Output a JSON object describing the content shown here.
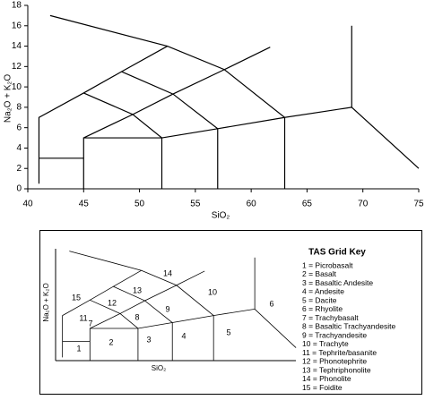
{
  "chart_data": {
    "type": "line",
    "x_label": "SiO₂",
    "y_label": "Na₂O + K₂O",
    "xlim": [
      40,
      75
    ],
    "xticks": [
      40,
      45,
      50,
      55,
      60,
      65,
      70,
      75
    ],
    "ylim": [
      0,
      18
    ],
    "yticks": [
      0,
      2,
      4,
      6,
      8,
      10,
      12,
      14,
      16,
      18
    ],
    "color": "#000000",
    "lines": [
      {
        "x": [
          41,
          41,
          45,
          48.4,
          52.5
        ],
        "y": [
          0.5,
          7,
          9.4,
          11.5,
          14
        ]
      },
      {
        "x": [
          42,
          52.5,
          57.6,
          63,
          69,
          75
        ],
        "y": [
          17,
          14,
          11.7,
          7,
          8,
          2
        ]
      },
      {
        "x": [
          69,
          69
        ],
        "y": [
          8,
          16
        ]
      },
      {
        "x": [
          41,
          45
        ],
        "y": [
          3,
          3
        ]
      },
      {
        "x": [
          45,
          45,
          52,
          57,
          63
        ],
        "y": [
          0,
          5,
          5,
          5.9,
          7
        ]
      },
      {
        "x": [
          45,
          49.4,
          52,
          52
        ],
        "y": [
          9.4,
          7.3,
          5,
          0
        ]
      },
      {
        "x": [
          45,
          49.4,
          53,
          57.6,
          61.7
        ],
        "y": [
          5,
          7.3,
          9.3,
          11.7,
          13.9
        ]
      },
      {
        "x": [
          48.4,
          53,
          57,
          57
        ],
        "y": [
          11.5,
          9.3,
          5.9,
          0
        ]
      },
      {
        "x": [
          63,
          63
        ],
        "y": [
          7,
          0
        ]
      }
    ]
  },
  "key": {
    "title": "TAS Grid Key",
    "items": [
      "1 = Picrobasalt",
      "2 = Basalt",
      "3 = Basaltic Andesite",
      "4 = Andesite",
      "5 = Dacite",
      "6 = Rhyolite",
      "7 = Trachybasalt",
      "8 = Basaltic Trachyandesite",
      "9 = Trachyandesite",
      "10 = Trachyte",
      "11 = Tephrite/basanite",
      "12 = Phonotephrite",
      "13 = Tephriphonolite",
      "14 = Phonolite",
      "15 = Foidite"
    ],
    "field_labels": [
      "1",
      "2",
      "3",
      "4",
      "5",
      "6",
      "7",
      "8",
      "9",
      "10",
      "11",
      "12",
      "13",
      "14",
      "15"
    ]
  }
}
